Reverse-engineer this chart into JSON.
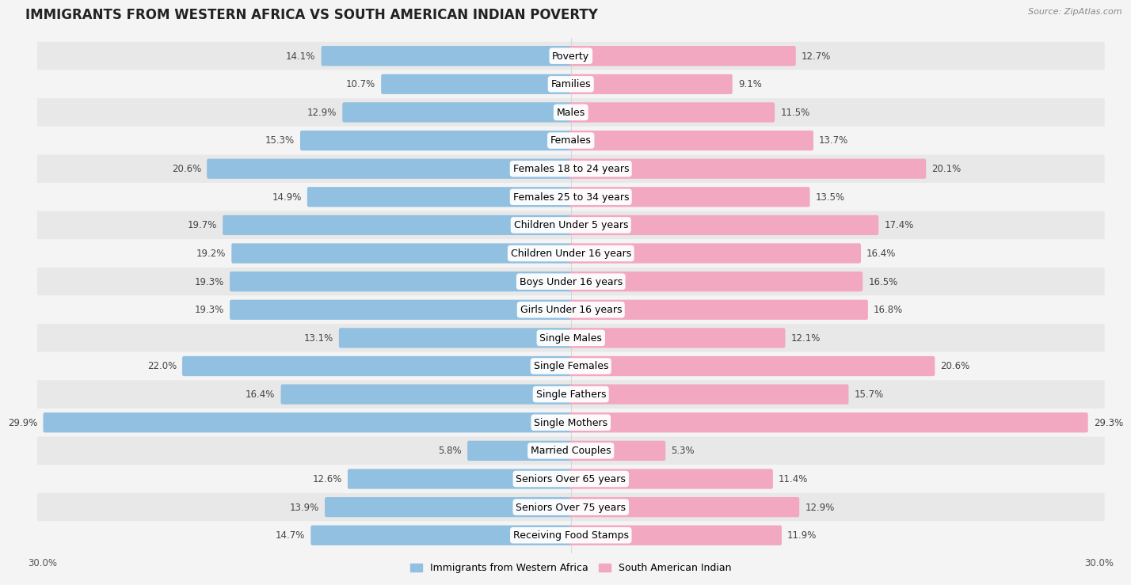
{
  "title": "IMMIGRANTS FROM WESTERN AFRICA VS SOUTH AMERICAN INDIAN POVERTY",
  "source": "Source: ZipAtlas.com",
  "categories": [
    "Poverty",
    "Families",
    "Males",
    "Females",
    "Females 18 to 24 years",
    "Females 25 to 34 years",
    "Children Under 5 years",
    "Children Under 16 years",
    "Boys Under 16 years",
    "Girls Under 16 years",
    "Single Males",
    "Single Females",
    "Single Fathers",
    "Single Mothers",
    "Married Couples",
    "Seniors Over 65 years",
    "Seniors Over 75 years",
    "Receiving Food Stamps"
  ],
  "left_values": [
    14.1,
    10.7,
    12.9,
    15.3,
    20.6,
    14.9,
    19.7,
    19.2,
    19.3,
    19.3,
    13.1,
    22.0,
    16.4,
    29.9,
    5.8,
    12.6,
    13.9,
    14.7
  ],
  "right_values": [
    12.7,
    9.1,
    11.5,
    13.7,
    20.1,
    13.5,
    17.4,
    16.4,
    16.5,
    16.8,
    12.1,
    20.6,
    15.7,
    29.3,
    5.3,
    11.4,
    12.9,
    11.9
  ],
  "left_color": "#92c0e0",
  "right_color": "#f2a8c0",
  "left_label": "Immigrants from Western Africa",
  "right_label": "South American Indian",
  "max_val": 30.0,
  "bg_color": "#f4f4f4",
  "row_even_color": "#e8e8e8",
  "row_odd_color": "#f4f4f4",
  "title_fontsize": 12,
  "cat_fontsize": 9,
  "value_fontsize": 8.5,
  "legend_fontsize": 9,
  "tick_fontsize": 8.5
}
